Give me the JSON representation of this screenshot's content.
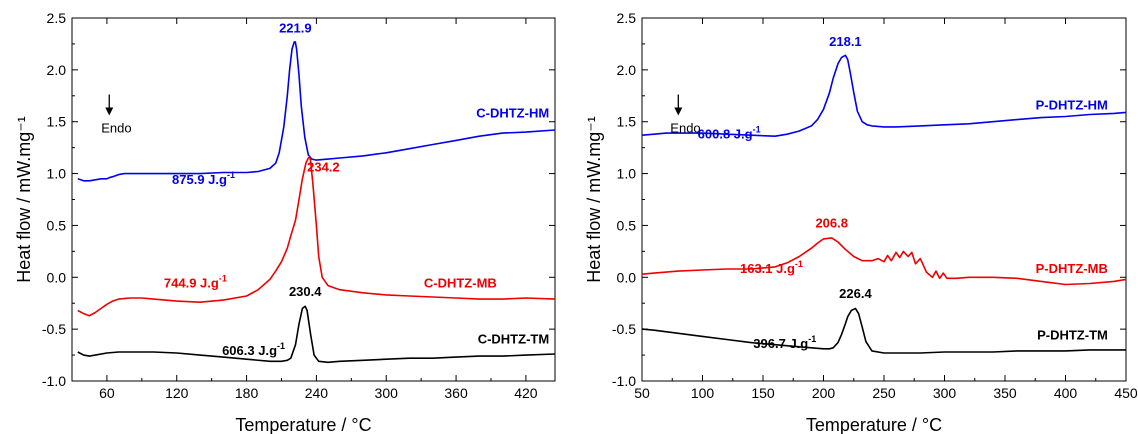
{
  "chart_data": [
    {
      "type": "line",
      "xlabel": "Temperature  / °C",
      "ylabel": "Heat flow / mW.mg⁻¹",
      "xlim": [
        30,
        445
      ],
      "ylim": [
        -1.0,
        2.5
      ],
      "xticks": [
        60,
        120,
        180,
        240,
        300,
        360,
        420
      ],
      "yticks": [
        -1.0,
        -0.5,
        0.0,
        0.5,
        1.0,
        1.5,
        2.0,
        2.5
      ],
      "endo_label": "Endo",
      "series": [
        {
          "name": "C-DHTZ-HM",
          "color": "#0000ee",
          "x": [
            35,
            40,
            45,
            50,
            55,
            60,
            62,
            65,
            70,
            75,
            80,
            90,
            100,
            120,
            140,
            160,
            180,
            190,
            200,
            205,
            208,
            212,
            215,
            217,
            219,
            221,
            221.9,
            223,
            225,
            227,
            230,
            233,
            236,
            240,
            250,
            260,
            280,
            300,
            320,
            340,
            360,
            380,
            400,
            420,
            445
          ],
          "y": [
            0.95,
            0.93,
            0.93,
            0.94,
            0.95,
            0.95,
            0.96,
            0.97,
            0.99,
            1.0,
            1.0,
            1.0,
            1.0,
            1.0,
            1.0,
            1.01,
            1.01,
            1.02,
            1.05,
            1.1,
            1.2,
            1.45,
            1.75,
            2.0,
            2.2,
            2.27,
            2.27,
            2.2,
            1.95,
            1.65,
            1.35,
            1.18,
            1.14,
            1.13,
            1.14,
            1.15,
            1.17,
            1.2,
            1.24,
            1.28,
            1.32,
            1.36,
            1.39,
            1.4,
            1.42
          ]
        },
        {
          "name": "C-DHTZ-MB",
          "color": "#ee0000",
          "x": [
            35,
            40,
            45,
            50,
            55,
            60,
            65,
            70,
            80,
            90,
            100,
            120,
            140,
            160,
            180,
            190,
            200,
            205,
            210,
            215,
            218,
            222,
            225,
            228,
            231,
            233,
            234.2,
            235,
            237,
            240,
            242,
            245,
            250,
            260,
            280,
            300,
            320,
            340,
            360,
            380,
            400,
            420,
            445
          ],
          "y": [
            -0.32,
            -0.35,
            -0.37,
            -0.34,
            -0.3,
            -0.26,
            -0.23,
            -0.21,
            -0.2,
            -0.2,
            -0.21,
            -0.23,
            -0.24,
            -0.22,
            -0.18,
            -0.12,
            -0.02,
            0.06,
            0.15,
            0.28,
            0.4,
            0.55,
            0.75,
            0.95,
            1.1,
            1.15,
            1.16,
            1.12,
            0.9,
            0.5,
            0.2,
            0.0,
            -0.08,
            -0.12,
            -0.15,
            -0.17,
            -0.18,
            -0.19,
            -0.2,
            -0.21,
            -0.21,
            -0.2,
            -0.21
          ]
        },
        {
          "name": "C-DHTZ-TM",
          "color": "#000000",
          "x": [
            35,
            40,
            45,
            50,
            60,
            70,
            80,
            100,
            120,
            140,
            160,
            180,
            200,
            210,
            215,
            218,
            222,
            225,
            228,
            230.4,
            232,
            235,
            238,
            242,
            250,
            260,
            280,
            300,
            320,
            340,
            360,
            380,
            400,
            420,
            445
          ],
          "y": [
            -0.72,
            -0.75,
            -0.76,
            -0.75,
            -0.73,
            -0.72,
            -0.72,
            -0.72,
            -0.73,
            -0.75,
            -0.77,
            -0.79,
            -0.81,
            -0.81,
            -0.8,
            -0.78,
            -0.65,
            -0.45,
            -0.3,
            -0.28,
            -0.32,
            -0.55,
            -0.75,
            -0.81,
            -0.82,
            -0.81,
            -0.8,
            -0.79,
            -0.78,
            -0.78,
            -0.77,
            -0.76,
            -0.76,
            -0.75,
            -0.74
          ]
        }
      ],
      "annotations": [
        {
          "text": "221.9",
          "x": 221.9,
          "y": 2.36,
          "color": "#0000ee"
        },
        {
          "text": "234.2",
          "x": 246,
          "y": 1.02,
          "color": "#ee0000"
        },
        {
          "text": "230.4",
          "x": 230.4,
          "y": -0.18,
          "color": "#000000"
        },
        {
          "text": "C-DHTZ-HM",
          "x": 440,
          "y": 1.54,
          "color": "#0000ee",
          "anchor": "end"
        },
        {
          "text": "C-DHTZ-MB",
          "x": 395,
          "y": -0.1,
          "color": "#ee0000",
          "anchor": "end"
        },
        {
          "text": "C-DHTZ-TM",
          "x": 440,
          "y": -0.64,
          "color": "#000000",
          "anchor": "end"
        },
        {
          "text": "875.9 J.g",
          "sup": "-1",
          "x": 143,
          "y": 0.9,
          "color": "#0000ee"
        },
        {
          "text": "744.9 J.g",
          "sup": "-1",
          "x": 136,
          "y": -0.1,
          "color": "#ee0000"
        },
        {
          "text": "606.3 J.g",
          "sup": "-1",
          "x": 186,
          "y": -0.75,
          "color": "#000000"
        }
      ],
      "endo_pos": {
        "x": 62,
        "y": 1.55
      }
    },
    {
      "type": "line",
      "xlabel": "Temperature  / °C",
      "ylabel": "Heat flow / mW.mg⁻¹",
      "xlim": [
        50,
        450
      ],
      "ylim": [
        -1.0,
        2.5
      ],
      "xticks": [
        50,
        100,
        150,
        200,
        250,
        300,
        350,
        400,
        450
      ],
      "yticks": [
        -1.0,
        -0.5,
        0.0,
        0.5,
        1.0,
        1.5,
        2.0,
        2.5
      ],
      "endo_label": "Endo",
      "series": [
        {
          "name": "P-DHTZ-HM",
          "color": "#0000ee",
          "x": [
            50,
            60,
            70,
            80,
            100,
            120,
            140,
            160,
            170,
            180,
            190,
            195,
            200,
            205,
            208,
            212,
            215,
            218.1,
            220,
            222,
            225,
            228,
            232,
            236,
            240,
            250,
            260,
            280,
            300,
            320,
            340,
            360,
            380,
            400,
            420,
            440,
            450
          ],
          "y": [
            1.37,
            1.38,
            1.39,
            1.39,
            1.39,
            1.38,
            1.37,
            1.36,
            1.38,
            1.41,
            1.46,
            1.52,
            1.62,
            1.78,
            1.92,
            2.06,
            2.12,
            2.14,
            2.1,
            1.98,
            1.78,
            1.6,
            1.5,
            1.47,
            1.46,
            1.45,
            1.45,
            1.46,
            1.47,
            1.48,
            1.5,
            1.52,
            1.54,
            1.55,
            1.57,
            1.58,
            1.59
          ]
        },
        {
          "name": "P-DHTZ-MB",
          "color": "#ee0000",
          "x": [
            50,
            60,
            80,
            100,
            120,
            140,
            160,
            170,
            180,
            190,
            195,
            200,
            206.8,
            212,
            218,
            225,
            232,
            240,
            245,
            250,
            253,
            256,
            260,
            263,
            266,
            270,
            273,
            276,
            280,
            285,
            290,
            293,
            296,
            299,
            302,
            310,
            320,
            340,
            360,
            380,
            400,
            420,
            440,
            450
          ],
          "y": [
            0.03,
            0.04,
            0.06,
            0.07,
            0.08,
            0.08,
            0.1,
            0.14,
            0.2,
            0.28,
            0.33,
            0.37,
            0.38,
            0.34,
            0.27,
            0.2,
            0.16,
            0.16,
            0.18,
            0.15,
            0.21,
            0.16,
            0.24,
            0.19,
            0.25,
            0.2,
            0.24,
            0.13,
            0.18,
            0.05,
            0.0,
            0.06,
            -0.01,
            0.04,
            -0.01,
            -0.01,
            0.0,
            0.0,
            -0.01,
            -0.04,
            -0.07,
            -0.06,
            -0.04,
            -0.02
          ]
        },
        {
          "name": "P-DHTZ-TM",
          "color": "#000000",
          "x": [
            50,
            60,
            80,
            100,
            120,
            140,
            160,
            180,
            190,
            200,
            205,
            208,
            212,
            215,
            218,
            220,
            223,
            226.4,
            229,
            232,
            235,
            240,
            250,
            260,
            280,
            300,
            320,
            340,
            360,
            380,
            400,
            420,
            440,
            450
          ],
          "y": [
            -0.5,
            -0.51,
            -0.54,
            -0.57,
            -0.6,
            -0.63,
            -0.65,
            -0.67,
            -0.68,
            -0.69,
            -0.69,
            -0.68,
            -0.63,
            -0.55,
            -0.45,
            -0.38,
            -0.32,
            -0.3,
            -0.35,
            -0.48,
            -0.62,
            -0.71,
            -0.73,
            -0.73,
            -0.73,
            -0.72,
            -0.72,
            -0.72,
            -0.71,
            -0.71,
            -0.71,
            -0.7,
            -0.7,
            -0.7
          ]
        }
      ],
      "annotations": [
        {
          "text": "218.1",
          "x": 218.1,
          "y": 2.23,
          "color": "#0000ee"
        },
        {
          "text": "206.8",
          "x": 206.8,
          "y": 0.48,
          "color": "#ee0000"
        },
        {
          "text": "226.4",
          "x": 226.4,
          "y": -0.2,
          "color": "#000000"
        },
        {
          "text": "P-DHTZ-HM",
          "x": 435,
          "y": 1.62,
          "color": "#0000ee",
          "anchor": "end"
        },
        {
          "text": "P-DHTZ-MB",
          "x": 435,
          "y": 0.04,
          "color": "#ee0000",
          "anchor": "end"
        },
        {
          "text": "P-DHTZ-TM",
          "x": 435,
          "y": -0.6,
          "color": "#000000",
          "anchor": "end"
        },
        {
          "text": "600.8 J.g",
          "sup": "-1",
          "x": 122,
          "y": 1.34,
          "color": "#0000ee"
        },
        {
          "text": "163.1 J.g",
          "sup": "-1",
          "x": 157,
          "y": 0.04,
          "color": "#ee0000"
        },
        {
          "text": "396.7 J.g",
          "sup": "-1",
          "x": 168,
          "y": -0.68,
          "color": "#000000"
        }
      ],
      "endo_pos": {
        "x": 80,
        "y": 1.55
      }
    }
  ]
}
